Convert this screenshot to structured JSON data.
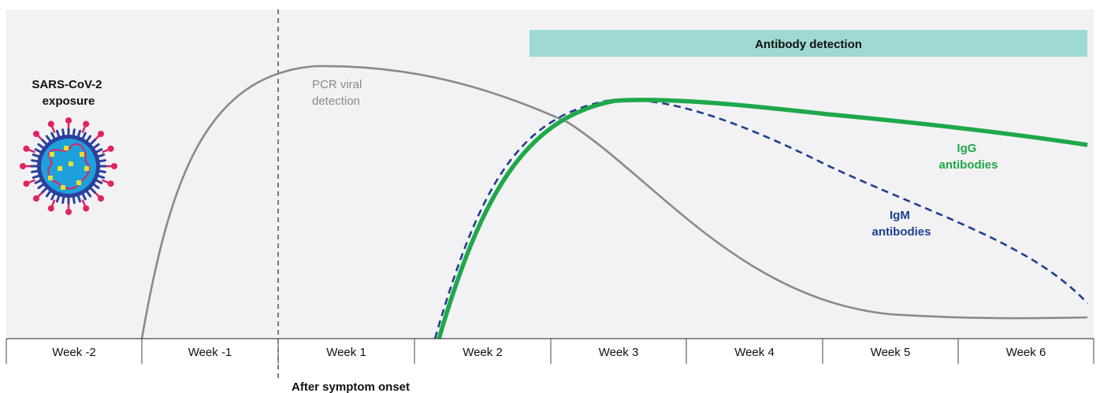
{
  "chart_data": {
    "type": "line",
    "title": "",
    "xlabel": "",
    "ylabel": "",
    "categories": [
      "Week -2",
      "Week -1",
      "Week 1",
      "Week 2",
      "Week 3",
      "Week 4",
      "Week 5",
      "Week 6"
    ],
    "onset_label": "After symptom onset",
    "exposure_label": [
      "SARS-CoV-2",
      "exposure"
    ],
    "banner_label": "Antibody detection",
    "series": [
      {
        "name": "PCR viral detection",
        "label_lines": [
          "PCR viral",
          "detection"
        ],
        "color": "#8a8a8a"
      },
      {
        "name": "IgG antibodies",
        "label_lines": [
          "IgG",
          "antibodies"
        ],
        "color": "#1fa84a"
      },
      {
        "name": "IgM antibodies",
        "label_lines": [
          "IgM",
          "antibodies"
        ],
        "color": "#1e3f8f"
      }
    ],
    "grid": false,
    "colors": {
      "panel_bg": "#f2f2f4",
      "banner": "#9ed9d3",
      "virus_body": "#1ea0dc",
      "virus_spike": "#e0245e",
      "virus_ring": "#2c3f9e",
      "virus_dot": "#e8e030"
    },
    "icons": [
      "virus-icon"
    ]
  }
}
